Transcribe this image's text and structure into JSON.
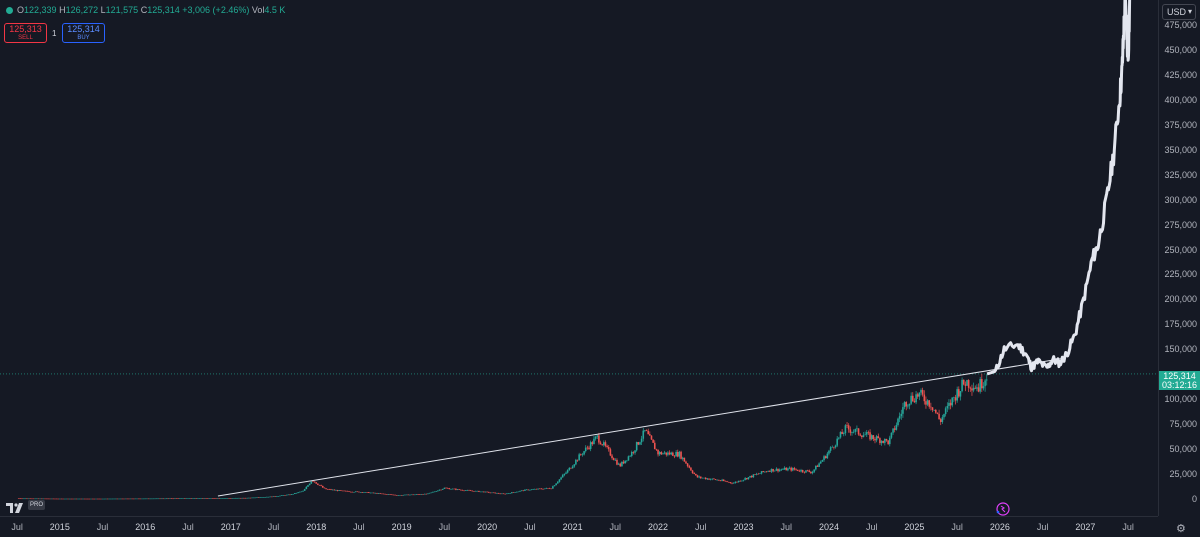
{
  "ohlc": {
    "open_key": "O",
    "open": "122,339",
    "high_key": "H",
    "high": "126,272",
    "low_key": "L",
    "low": "121,575",
    "close_key": "C",
    "close": "125,314",
    "change": "+3,006 (+2.46%)",
    "vol_key": "Vol",
    "vol": "4.5 K"
  },
  "trade": {
    "sell_price": "125,313",
    "sell_label": "SELL",
    "spread": "1",
    "buy_price": "125,314",
    "buy_label": "BUY"
  },
  "currency_button": "USD",
  "current_price": {
    "price": "125,314",
    "countdown": "03:12:16"
  },
  "price_axis": [
    "475,000",
    "450,000",
    "425,000",
    "400,000",
    "375,000",
    "350,000",
    "325,000",
    "300,000",
    "275,000",
    "250,000",
    "225,000",
    "200,000",
    "175,000",
    "150,000",
    "100,000",
    "75,000",
    "50,000",
    "25,000",
    "0"
  ],
  "time_axis": [
    {
      "label": "Jul",
      "year": 2014.5
    },
    {
      "label": "2015",
      "year": 2015
    },
    {
      "label": "Jul",
      "year": 2015.5
    },
    {
      "label": "2016",
      "year": 2016
    },
    {
      "label": "Jul",
      "year": 2016.5
    },
    {
      "label": "2017",
      "year": 2017
    },
    {
      "label": "Jul",
      "year": 2017.5
    },
    {
      "label": "2018",
      "year": 2018
    },
    {
      "label": "Jul",
      "year": 2018.5
    },
    {
      "label": "2019",
      "year": 2019
    },
    {
      "label": "Jul",
      "year": 2019.5
    },
    {
      "label": "2020",
      "year": 2020
    },
    {
      "label": "Jul",
      "year": 2020.5
    },
    {
      "label": "2021",
      "year": 2021
    },
    {
      "label": "Jul",
      "year": 2021.5
    },
    {
      "label": "2022",
      "year": 2022
    },
    {
      "label": "Jul",
      "year": 2022.5
    },
    {
      "label": "2023",
      "year": 2023
    },
    {
      "label": "Jul",
      "year": 2023.5
    },
    {
      "label": "2024",
      "year": 2024
    },
    {
      "label": "Jul",
      "year": 2024.5
    },
    {
      "label": "2025",
      "year": 2025
    },
    {
      "label": "Jul",
      "year": 2025.5
    },
    {
      "label": "2026",
      "year": 2026
    },
    {
      "label": "Jul",
      "year": 2026.5
    },
    {
      "label": "2027",
      "year": 2027
    },
    {
      "label": "Jul",
      "year": 2027.5
    }
  ],
  "chart_data": {
    "type": "line",
    "y_range": [
      0,
      500000
    ],
    "x_range": [
      2014.3,
      2027.85
    ],
    "current_price_value": 125314,
    "historical": [
      [
        2014.5,
        600
      ],
      [
        2015.0,
        300
      ],
      [
        2015.5,
        280
      ],
      [
        2016.0,
        430
      ],
      [
        2016.5,
        650
      ],
      [
        2016.9,
        900
      ],
      [
        2017.2,
        1100
      ],
      [
        2017.5,
        2500
      ],
      [
        2017.7,
        4500
      ],
      [
        2017.85,
        8000
      ],
      [
        2017.95,
        19000
      ],
      [
        2018.1,
        10000
      ],
      [
        2018.3,
        8000
      ],
      [
        2018.6,
        6500
      ],
      [
        2018.95,
        3800
      ],
      [
        2019.3,
        5000
      ],
      [
        2019.5,
        11000
      ],
      [
        2019.7,
        9000
      ],
      [
        2019.95,
        7200
      ],
      [
        2020.2,
        5000
      ],
      [
        2020.45,
        9000
      ],
      [
        2020.75,
        11000
      ],
      [
        2020.95,
        29000
      ],
      [
        2021.1,
        45000
      ],
      [
        2021.29,
        62000
      ],
      [
        2021.4,
        50000
      ],
      [
        2021.55,
        33000
      ],
      [
        2021.7,
        47000
      ],
      [
        2021.85,
        68000
      ],
      [
        2022.0,
        46000
      ],
      [
        2022.25,
        45000
      ],
      [
        2022.45,
        22000
      ],
      [
        2022.7,
        19000
      ],
      [
        2022.88,
        16000
      ],
      [
        2023.1,
        23000
      ],
      [
        2023.3,
        29000
      ],
      [
        2023.55,
        30000
      ],
      [
        2023.8,
        27000
      ],
      [
        2023.95,
        42000
      ],
      [
        2024.2,
        71000
      ],
      [
        2024.5,
        62000
      ],
      [
        2024.7,
        57000
      ],
      [
        2024.9,
        98000
      ],
      [
        2025.05,
        105000
      ],
      [
        2025.2,
        95000
      ],
      [
        2025.3,
        78000
      ],
      [
        2025.5,
        107000
      ],
      [
        2025.6,
        118000
      ],
      [
        2025.75,
        112000
      ],
      [
        2025.85,
        125314
      ]
    ],
    "projection": [
      [
        2025.85,
        125314
      ],
      [
        2025.95,
        128000
      ],
      [
        2026.05,
        150000
      ],
      [
        2026.2,
        155000
      ],
      [
        2026.3,
        146000
      ],
      [
        2026.37,
        132000
      ],
      [
        2026.45,
        138000
      ],
      [
        2026.55,
        131000
      ],
      [
        2026.62,
        140000
      ],
      [
        2026.7,
        136000
      ],
      [
        2026.78,
        145000
      ],
      [
        2026.88,
        165000
      ],
      [
        2026.98,
        200000
      ],
      [
        2027.08,
        240000
      ],
      [
        2027.15,
        255000
      ],
      [
        2027.25,
        300000
      ],
      [
        2027.33,
        345000
      ],
      [
        2027.4,
        400000
      ],
      [
        2027.43,
        430000
      ],
      [
        2027.45,
        470000
      ],
      [
        2027.47,
        500000
      ],
      [
        2027.5,
        440000
      ],
      [
        2027.52,
        500000
      ]
    ],
    "trendline": [
      [
        2016.85,
        3000
      ],
      [
        2026.75,
        141000
      ]
    ]
  }
}
